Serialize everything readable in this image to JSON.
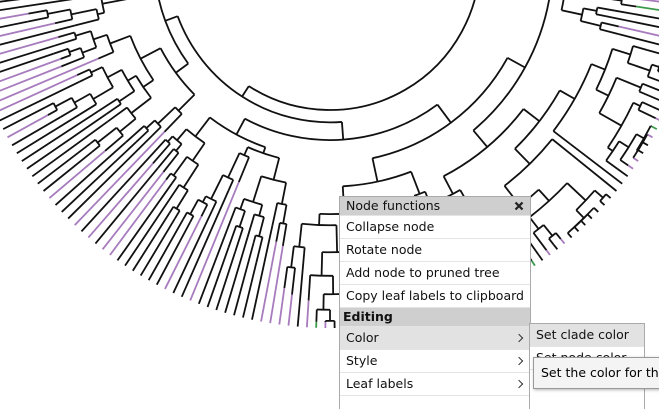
{
  "menu": {
    "title": "Node functions",
    "items": [
      "Collapse node",
      "Rotate node",
      "Add node to pruned tree",
      "Copy leaf labels to clipboard"
    ],
    "section": "Editing",
    "section_items": [
      "Color",
      "Style",
      "Leaf labels"
    ]
  },
  "submenu": {
    "items": [
      "Set clade color",
      "Set node color"
    ]
  },
  "tooltip": "Set the color for th"
}
